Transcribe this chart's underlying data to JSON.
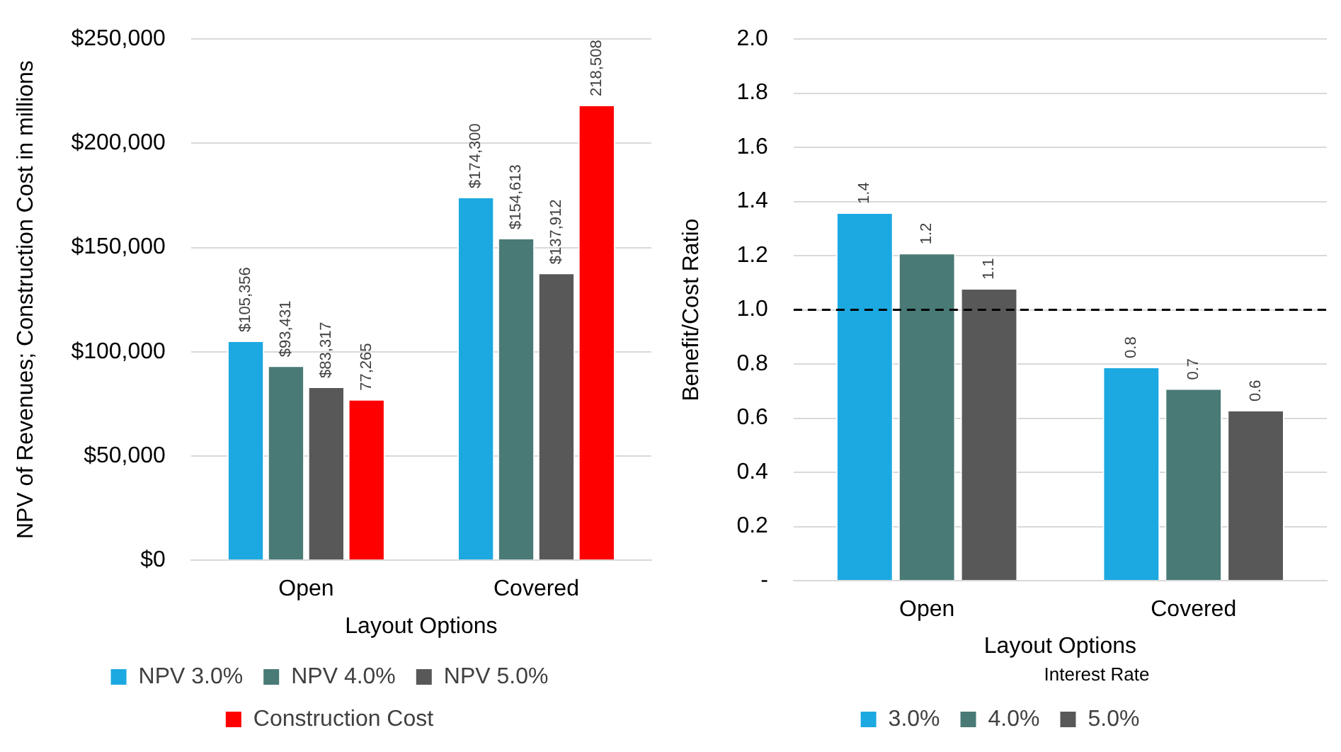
{
  "chart_data": [
    {
      "type": "bar",
      "xlabel": "Layout Options",
      "ylabel": "NPV of Revenues; Construction Cost in millions",
      "categories": [
        "Open",
        "Covered"
      ],
      "series": [
        {
          "name": "NPV 3.0%",
          "color": "#1ca9e1",
          "values": [
            105356,
            174300
          ],
          "value_labels": [
            "$105,356",
            "$174,300"
          ]
        },
        {
          "name": "NPV 4.0%",
          "color": "#497a76",
          "values": [
            93431,
            154613
          ],
          "value_labels": [
            "$93,431",
            "$154,613"
          ]
        },
        {
          "name": "NPV 5.0%",
          "color": "#585858",
          "values": [
            83317,
            137912
          ],
          "value_labels": [
            "$83,317",
            "$137,912"
          ]
        },
        {
          "name": "Construction Cost",
          "color": "#ff0000",
          "values": [
            77265,
            218508
          ],
          "value_labels": [
            "77,265",
            "218,508"
          ]
        }
      ],
      "ylim": [
        0,
        250000
      ],
      "yticks": [
        {
          "value": 0,
          "label": "$0"
        },
        {
          "value": 50000,
          "label": "$50,000"
        },
        {
          "value": 100000,
          "label": "$100,000"
        },
        {
          "value": 150000,
          "label": "$150,000"
        },
        {
          "value": 200000,
          "label": "$200,000"
        },
        {
          "value": 250000,
          "label": "$250,000"
        }
      ],
      "grid": "y",
      "legend": "bottom"
    },
    {
      "type": "bar",
      "xlabel": "Layout Options",
      "ylabel": "Benefit/Cost Ratio",
      "legend_title": "Interest Rate",
      "categories": [
        "Open",
        "Covered"
      ],
      "series": [
        {
          "name": "3.0%",
          "color": "#1ca9e1",
          "values": [
            1.36,
            0.79
          ],
          "value_labels": [
            "1.4",
            "0.8"
          ]
        },
        {
          "name": "4.0%",
          "color": "#497a76",
          "values": [
            1.21,
            0.71
          ],
          "value_labels": [
            "1.2",
            "0.7"
          ]
        },
        {
          "name": "5.0%",
          "color": "#585858",
          "values": [
            1.08,
            0.63
          ],
          "value_labels": [
            "1.1",
            "0.6"
          ]
        }
      ],
      "ylim": [
        0,
        2
      ],
      "yticks": [
        {
          "value": 0,
          "label": "-"
        },
        0.2,
        0.4,
        0.6,
        0.8,
        {
          "value": 1,
          "label": "1.0"
        },
        1.2,
        1.4,
        1.6,
        1.8,
        {
          "value": 2,
          "label": "2.0"
        }
      ],
      "ref_lines": [
        {
          "axis": "y",
          "value": 1,
          "color": "#000000",
          "line_style": "dashed"
        }
      ],
      "grid": "y",
      "legend": "bottom"
    }
  ]
}
